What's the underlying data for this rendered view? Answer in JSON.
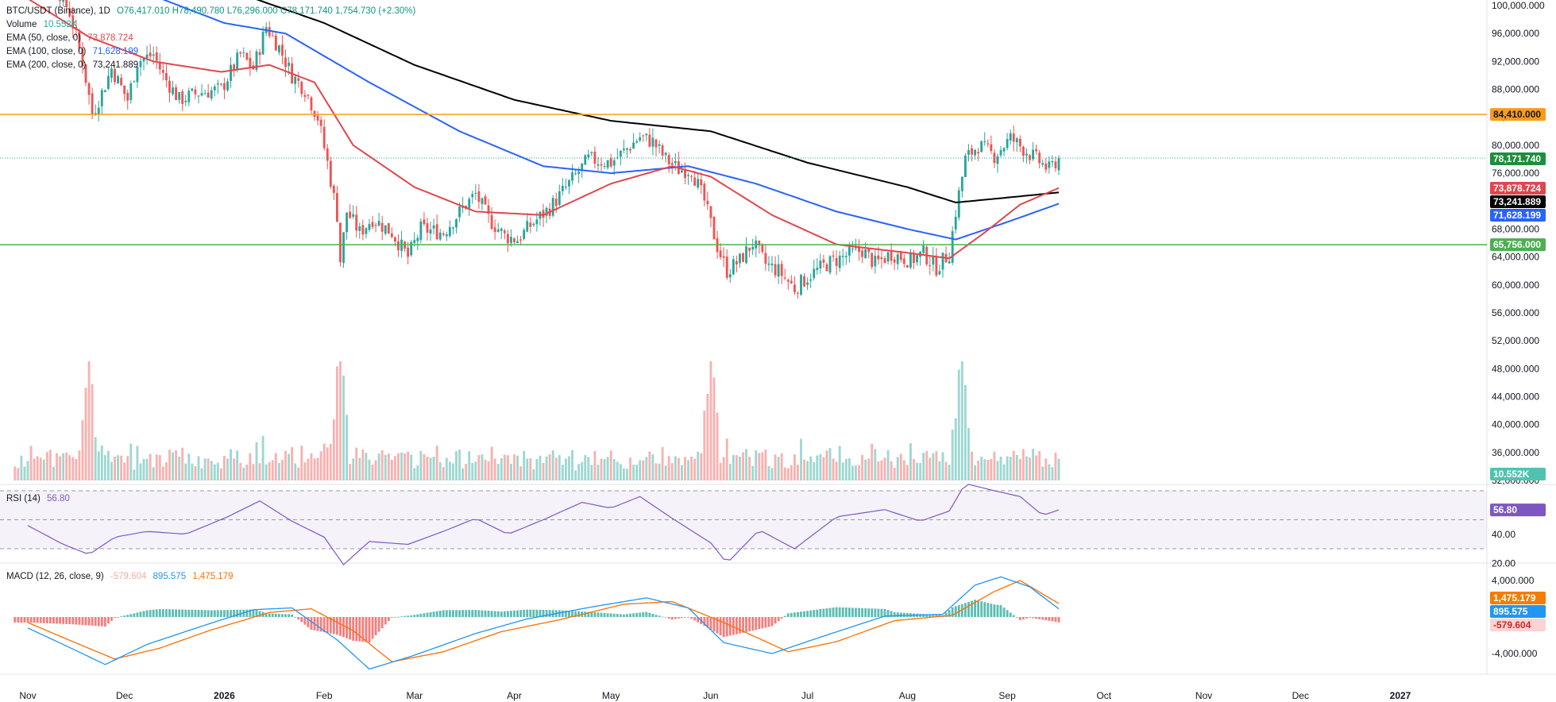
{
  "legend": {
    "symbol": "BTC/USDT (Binance), 1D",
    "ohlc": "O76,417.010 H78,490.780 L76,296.000 C78,171.740 1,754.730 (+2.30%)",
    "volume_label": "Volume",
    "volume_value": "10.552K",
    "ema50_label": "EMA (50, close, 0)",
    "ema50_value": "73,878.724",
    "ema100_label": "EMA (100, close, 0)",
    "ema100_value": "71,628.199",
    "ema200_label": "EMA (200, close, 0)",
    "ema200_value": "73,241.889",
    "rsi_label": "RSI (14)",
    "rsi_value": "56.80",
    "macd_label": "MACD (12, 26, close, 9)",
    "macd_hist_value": "-579.604",
    "macd_line_value": "895.575",
    "macd_signal_value": "1,475.179"
  },
  "chart_data": {
    "type": "line",
    "symbol": "BTC/USDT",
    "exchange": "Binance",
    "interval": "1D",
    "colors": {
      "up": "#26a69a",
      "down": "#ef5350",
      "ema50": "#e0474c",
      "ema100": "#2962ff",
      "ema200": "#000000",
      "resistance": "#f89c1c",
      "support": "#4caf50",
      "rsi": "#7e57c2",
      "macd": "#2196f3",
      "signal": "#ff6d00"
    },
    "x_axis": {
      "labels": [
        "Nov",
        "Dec",
        "2026",
        "Feb",
        "Mar",
        "Apr",
        "May",
        "Jun",
        "Jul",
        "Aug",
        "Sep",
        "Oct",
        "Nov",
        "Dec",
        "2027"
      ],
      "label_dates": [
        "2025-11-01",
        "2025-12-01",
        "2026-01-01",
        "2026-02-01",
        "2026-03-01",
        "2026-04-01",
        "2026-05-01",
        "2026-06-01",
        "2026-07-01",
        "2026-08-01",
        "2026-09-01",
        "2026-10-01",
        "2026-11-01",
        "2026-12-01",
        "2027-01-01"
      ]
    },
    "price_axis": {
      "ticks": [
        "100,000.000",
        "96,000.000",
        "92,000.000",
        "88,000.000",
        "84,000.000",
        "80,000.000",
        "76,000.000",
        "72,000.000",
        "68,000.000",
        "64,000.000",
        "60,000.000",
        "56,000.000",
        "52,000.000",
        "48,000.000",
        "44,000.000",
        "40,000.000",
        "36,000.000",
        "32,000.000"
      ],
      "ylim": [
        30000,
        100500
      ]
    },
    "horizontal_lines": [
      {
        "name": "resistance",
        "value": 84410,
        "label": "84,410.000"
      },
      {
        "name": "support",
        "value": 65756,
        "label": "65,756.000"
      }
    ],
    "price_tags": [
      {
        "label": "78,171.740",
        "value": 78171.74,
        "series": "last"
      },
      {
        "label": "73,878.724",
        "value": 73878.724,
        "series": "ema50"
      },
      {
        "label": "73,241.889",
        "value": 73241.889,
        "series": "ema200"
      },
      {
        "label": "71,628.199",
        "value": 71628.199,
        "series": "ema100"
      }
    ],
    "volume_tag": "10.552K",
    "price_anchors": [
      [
        "2025-11-01",
        110000
      ],
      [
        "2025-11-08",
        104500
      ],
      [
        "2025-11-14",
        99000
      ],
      [
        "2025-11-18",
        92000
      ],
      [
        "2025-11-21",
        84500
      ],
      [
        "2025-11-24",
        87500
      ],
      [
        "2025-11-27",
        91000
      ],
      [
        "2025-12-02",
        86500
      ],
      [
        "2025-12-05",
        92000
      ],
      [
        "2025-12-10",
        93000
      ],
      [
        "2025-12-13",
        90000
      ],
      [
        "2025-12-18",
        86500
      ],
      [
        "2025-12-24",
        87500
      ],
      [
        "2025-12-31",
        88000
      ],
      [
        "2026-01-06",
        93000
      ],
      [
        "2026-01-10",
        91000
      ],
      [
        "2026-01-14",
        97000
      ],
      [
        "2026-01-18",
        94000
      ],
      [
        "2026-01-22",
        90000
      ],
      [
        "2026-01-26",
        88000
      ],
      [
        "2026-01-30",
        84000
      ],
      [
        "2026-02-02",
        77500
      ],
      [
        "2026-02-05",
        70000
      ],
      [
        "2026-02-06",
        63500
      ],
      [
        "2026-02-08",
        70500
      ],
      [
        "2026-02-12",
        67500
      ],
      [
        "2026-02-16",
        69500
      ],
      [
        "2026-02-22",
        67500
      ],
      [
        "2026-02-27",
        64000
      ],
      [
        "2026-03-03",
        68000
      ],
      [
        "2026-03-10",
        67500
      ],
      [
        "2026-03-16",
        71000
      ],
      [
        "2026-03-20",
        73000
      ],
      [
        "2026-03-24",
        69500
      ],
      [
        "2026-03-29",
        67000
      ],
      [
        "2026-04-02",
        66500
      ],
      [
        "2026-04-06",
        68500
      ],
      [
        "2026-04-12",
        71000
      ],
      [
        "2026-04-18",
        74500
      ],
      [
        "2026-04-24",
        78000
      ],
      [
        "2026-05-01",
        77500
      ],
      [
        "2026-05-06",
        79500
      ],
      [
        "2026-05-10",
        81200
      ],
      [
        "2026-05-14",
        80500
      ],
      [
        "2026-05-18",
        78000
      ],
      [
        "2026-05-22",
        76500
      ],
      [
        "2026-05-26",
        76500
      ],
      [
        "2026-05-30",
        72000
      ],
      [
        "2026-06-03",
        65500
      ],
      [
        "2026-06-06",
        62000
      ],
      [
        "2026-06-10",
        63500
      ],
      [
        "2026-06-14",
        66000
      ],
      [
        "2026-06-18",
        63000
      ],
      [
        "2026-06-22",
        62000
      ],
      [
        "2026-06-27",
        59500
      ],
      [
        "2026-07-02",
        61500
      ],
      [
        "2026-07-07",
        63000
      ],
      [
        "2026-07-12",
        64000
      ],
      [
        "2026-07-18",
        65000
      ],
      [
        "2026-07-22",
        63000
      ],
      [
        "2026-07-27",
        64500
      ],
      [
        "2026-08-02",
        63500
      ],
      [
        "2026-08-06",
        64500
      ],
      [
        "2026-08-10",
        62500
      ],
      [
        "2026-08-14",
        64500
      ],
      [
        "2026-08-16",
        70500
      ],
      [
        "2026-08-19",
        78000
      ],
      [
        "2026-08-23",
        80000
      ],
      [
        "2026-08-28",
        78500
      ],
      [
        "2026-09-02",
        81000
      ],
      [
        "2026-09-06",
        79500
      ],
      [
        "2026-09-10",
        78000
      ],
      [
        "2026-09-14",
        76500
      ],
      [
        "2026-09-17",
        78171.74
      ]
    ],
    "ema_anchors": {
      "ema50": [
        [
          "2025-11-01",
          101000
        ],
        [
          "2025-11-20",
          95500
        ],
        [
          "2025-12-10",
          92000
        ],
        [
          "2025-12-31",
          90500
        ],
        [
          "2026-01-15",
          91500
        ],
        [
          "2026-01-29",
          89000
        ],
        [
          "2026-02-10",
          80000
        ],
        [
          "2026-03-01",
          74000
        ],
        [
          "2026-03-20",
          70500
        ],
        [
          "2026-04-10",
          70000
        ],
        [
          "2026-05-01",
          74500
        ],
        [
          "2026-05-20",
          77000
        ],
        [
          "2026-06-01",
          75500
        ],
        [
          "2026-06-20",
          70000
        ],
        [
          "2026-07-10",
          65800
        ],
        [
          "2026-08-01",
          64600
        ],
        [
          "2026-08-14",
          63800
        ],
        [
          "2026-08-25",
          67500
        ],
        [
          "2026-09-05",
          71500
        ],
        [
          "2026-09-17",
          73878.724
        ]
      ],
      "ema100": [
        [
          "2025-11-01",
          109000
        ],
        [
          "2025-12-01",
          103000
        ],
        [
          "2026-01-01",
          97500
        ],
        [
          "2026-01-20",
          96000
        ],
        [
          "2026-02-15",
          89000
        ],
        [
          "2026-03-15",
          82000
        ],
        [
          "2026-04-10",
          77000
        ],
        [
          "2026-05-01",
          76000
        ],
        [
          "2026-05-25",
          77000
        ],
        [
          "2026-06-15",
          74500
        ],
        [
          "2026-07-10",
          70500
        ],
        [
          "2026-08-01",
          68000
        ],
        [
          "2026-08-16",
          66500
        ],
        [
          "2026-09-01",
          69000
        ],
        [
          "2026-09-17",
          71628.199
        ]
      ],
      "ema200": [
        [
          "2025-11-01",
          110500
        ],
        [
          "2025-12-01",
          107000
        ],
        [
          "2026-01-01",
          102500
        ],
        [
          "2026-02-01",
          97500
        ],
        [
          "2026-03-01",
          91500
        ],
        [
          "2026-04-01",
          86500
        ],
        [
          "2026-05-01",
          83500
        ],
        [
          "2026-06-01",
          82000
        ],
        [
          "2026-07-01",
          77500
        ],
        [
          "2026-08-01",
          74000
        ],
        [
          "2026-08-16",
          71800
        ],
        [
          "2026-09-01",
          72500
        ],
        [
          "2026-09-17",
          73241.889
        ]
      ]
    },
    "rsi": {
      "value": 56.8,
      "value_label": "56.80",
      "levels": [
        70,
        50,
        30
      ],
      "axis_ticks": [
        "40.00",
        "20.00"
      ],
      "anchors": [
        [
          "2025-11-01",
          46
        ],
        [
          "2025-11-12",
          33
        ],
        [
          "2025-11-20",
          26
        ],
        [
          "2025-11-28",
          38
        ],
        [
          "2025-12-08",
          42
        ],
        [
          "2025-12-20",
          40
        ],
        [
          "2026-01-02",
          52
        ],
        [
          "2026-01-12",
          63
        ],
        [
          "2026-01-22",
          49
        ],
        [
          "2026-02-01",
          38
        ],
        [
          "2026-02-07",
          19
        ],
        [
          "2026-02-15",
          35
        ],
        [
          "2026-02-27",
          33
        ],
        [
          "2026-03-10",
          42
        ],
        [
          "2026-03-20",
          51
        ],
        [
          "2026-03-30",
          40
        ],
        [
          "2026-04-10",
          50
        ],
        [
          "2026-04-22",
          62
        ],
        [
          "2026-05-01",
          58
        ],
        [
          "2026-05-10",
          66
        ],
        [
          "2026-05-20",
          51
        ],
        [
          "2026-06-01",
          34
        ],
        [
          "2026-06-06",
          20
        ],
        [
          "2026-06-16",
          43
        ],
        [
          "2026-06-27",
          30
        ],
        [
          "2026-07-10",
          52
        ],
        [
          "2026-07-25",
          57
        ],
        [
          "2026-08-05",
          49
        ],
        [
          "2026-08-14",
          56
        ],
        [
          "2026-08-19",
          75
        ],
        [
          "2026-08-28",
          70
        ],
        [
          "2026-09-05",
          66
        ],
        [
          "2026-09-12",
          53
        ],
        [
          "2026-09-17",
          56.8
        ]
      ]
    },
    "macd": {
      "line_value": 895.575,
      "signal_value": 1475.179,
      "hist_value": -579.604,
      "tags": [
        "1,475.179",
        "895.575",
        "-579.604"
      ],
      "axis_ticks": [
        "4,000.000",
        "-4,000.000"
      ],
      "macd_anchors": [
        [
          "2025-11-01",
          -1200
        ],
        [
          "2025-11-15",
          -3500
        ],
        [
          "2025-11-25",
          -5200
        ],
        [
          "2025-12-08",
          -3000
        ],
        [
          "2025-12-25",
          -1000
        ],
        [
          "2026-01-10",
          800
        ],
        [
          "2026-01-22",
          1000
        ],
        [
          "2026-02-05",
          -2500
        ],
        [
          "2026-02-15",
          -5700
        ],
        [
          "2026-02-28",
          -4300
        ],
        [
          "2026-03-20",
          -1800
        ],
        [
          "2026-04-05",
          -200
        ],
        [
          "2026-04-25",
          1100
        ],
        [
          "2026-05-12",
          2100
        ],
        [
          "2026-05-25",
          1000
        ],
        [
          "2026-06-05",
          -2800
        ],
        [
          "2026-06-20",
          -4000
        ],
        [
          "2026-07-05",
          -2200
        ],
        [
          "2026-07-25",
          100
        ],
        [
          "2026-08-12",
          300
        ],
        [
          "2026-08-22",
          3500
        ],
        [
          "2026-08-30",
          4400
        ],
        [
          "2026-09-08",
          3300
        ],
        [
          "2026-09-17",
          895.575
        ]
      ],
      "signal_anchors": [
        [
          "2025-11-01",
          -600
        ],
        [
          "2025-11-15",
          -2700
        ],
        [
          "2025-11-28",
          -4600
        ],
        [
          "2025-12-12",
          -3400
        ],
        [
          "2025-12-28",
          -1400
        ],
        [
          "2026-01-15",
          500
        ],
        [
          "2026-01-28",
          900
        ],
        [
          "2026-02-10",
          -1500
        ],
        [
          "2026-02-22",
          -4900
        ],
        [
          "2026-03-10",
          -3800
        ],
        [
          "2026-03-28",
          -1600
        ],
        [
          "2026-04-15",
          -300
        ],
        [
          "2026-05-05",
          1400
        ],
        [
          "2026-05-20",
          1700
        ],
        [
          "2026-06-05",
          -600
        ],
        [
          "2026-06-25",
          -3800
        ],
        [
          "2026-07-10",
          -2700
        ],
        [
          "2026-07-28",
          -400
        ],
        [
          "2026-08-15",
          200
        ],
        [
          "2026-08-28",
          2800
        ],
        [
          "2026-09-05",
          4000
        ],
        [
          "2026-09-17",
          1475.179
        ]
      ]
    },
    "volume": {
      "ylim": [
        0,
        130000
      ],
      "baseline_value": 32000,
      "note_peak_dates": [
        "2026-02-06",
        "2025-11-20",
        "2026-06-01",
        "2026-08-18"
      ]
    }
  }
}
